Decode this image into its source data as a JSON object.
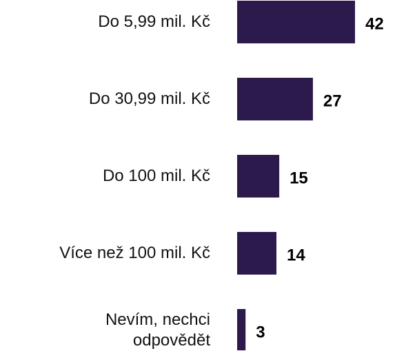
{
  "chart_data": {
    "type": "barh",
    "categories": [
      "Do 5,99 mil. Kč",
      "Do 30,99 mil. Kč",
      "Do 100 mil. Kč",
      "Více než 100 mil. Kč",
      "Nevím, nechci\nodpovědět"
    ],
    "values": [
      42,
      27,
      15,
      14,
      3
    ],
    "color": "#2d1a4d"
  }
}
